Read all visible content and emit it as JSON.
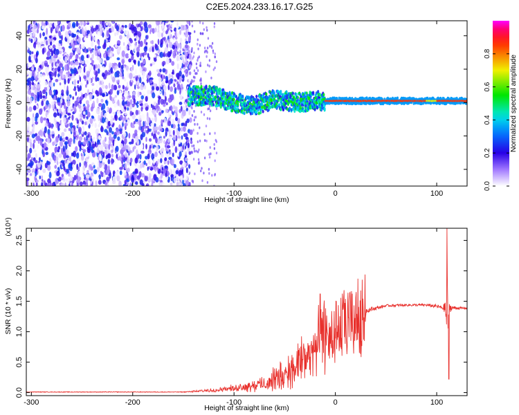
{
  "title": "C2E5.2024.233.16.17.G25",
  "chart_data": [
    {
      "type": "heatmap",
      "xlabel": "Height of straight line (km)",
      "ylabel": "Frequency (Hz)",
      "xlim": [
        -305,
        130
      ],
      "ylim": [
        -50,
        49
      ],
      "x_ticks": [
        "-300",
        "-200",
        "-100",
        "0",
        "100"
      ],
      "x_tick_values": [
        -300,
        -200,
        -100,
        0,
        100
      ],
      "y_ticks": [
        "40",
        "20",
        "0",
        "-20",
        "-40"
      ],
      "y_tick_values": [
        40,
        20,
        0,
        -20,
        -40
      ],
      "colorbar": {
        "label": "Normalized spectral amplitude",
        "range": [
          0,
          1
        ],
        "ticks": [
          "0.0",
          "0.2",
          "0.4",
          "0.6",
          "0.8"
        ],
        "tick_values": [
          0,
          0.2,
          0.4,
          0.6,
          0.8
        ]
      },
      "features": {
        "noise_region_x": [
          -305,
          -142
        ],
        "signal_band_center_hz": [
          {
            "x": -145,
            "y": 4
          },
          {
            "x": -120,
            "y": 4
          },
          {
            "x": -100,
            "y": 0
          },
          {
            "x": -80,
            "y": -2
          },
          {
            "x": -60,
            "y": 2
          },
          {
            "x": -40,
            "y": 0
          },
          {
            "x": -20,
            "y": 1
          },
          {
            "x": 0,
            "y": 1
          },
          {
            "x": 50,
            "y": 1
          },
          {
            "x": 100,
            "y": 1
          },
          {
            "x": 130,
            "y": 1
          }
        ]
      }
    },
    {
      "type": "line",
      "xlabel": "Height of straight line (km)",
      "ylabel": "SNR (10 * v/v)",
      "y_scale_label": "(x10⁴)",
      "xlim": [
        -305,
        130
      ],
      "ylim": [
        -0.05,
        2.7
      ],
      "x_ticks": [
        "-300",
        "-200",
        "-100",
        "0",
        "100"
      ],
      "x_tick_values": [
        -300,
        -200,
        -100,
        0,
        100
      ],
      "y_ticks": [
        "0.0",
        "0.5",
        "1.0",
        "1.5",
        "2.0",
        "2.5"
      ],
      "y_tick_values": [
        0,
        0.5,
        1.0,
        1.5,
        2.0,
        2.5
      ],
      "color": "#e8302c",
      "series_envelope": {
        "x": [
          -305,
          -250,
          -200,
          -150,
          -130,
          -110,
          -90,
          -70,
          -50,
          -40,
          -30,
          -20,
          -15,
          -10,
          0,
          10,
          20,
          30,
          50,
          70,
          90,
          100,
          105,
          108,
          110,
          112,
          115,
          120,
          130
        ],
        "y": [
          0.01,
          0.01,
          0.01,
          0.01,
          0.03,
          0.06,
          0.1,
          0.15,
          0.3,
          0.45,
          0.6,
          0.75,
          0.9,
          1.0,
          1.05,
          1.15,
          1.25,
          1.35,
          1.43,
          1.44,
          1.44,
          1.42,
          1.4,
          1.4,
          1.35,
          1.4,
          1.4,
          1.39,
          1.39
        ],
        "noise_amp": [
          0.005,
          0.005,
          0.005,
          0.005,
          0.02,
          0.04,
          0.08,
          0.15,
          0.35,
          0.45,
          0.5,
          0.5,
          0.5,
          0.4,
          0.3,
          0.2,
          0.1,
          0.04,
          0.02,
          0.02,
          0.02,
          0.03,
          0.03,
          0.08,
          0.9,
          0.1,
          0.04,
          0.02,
          0.02
        ]
      },
      "peaks": [
        {
          "x": -15,
          "y": 1.62
        },
        {
          "x": 110,
          "y": 2.7
        },
        {
          "x": 112,
          "y": 0.22
        }
      ]
    }
  ]
}
